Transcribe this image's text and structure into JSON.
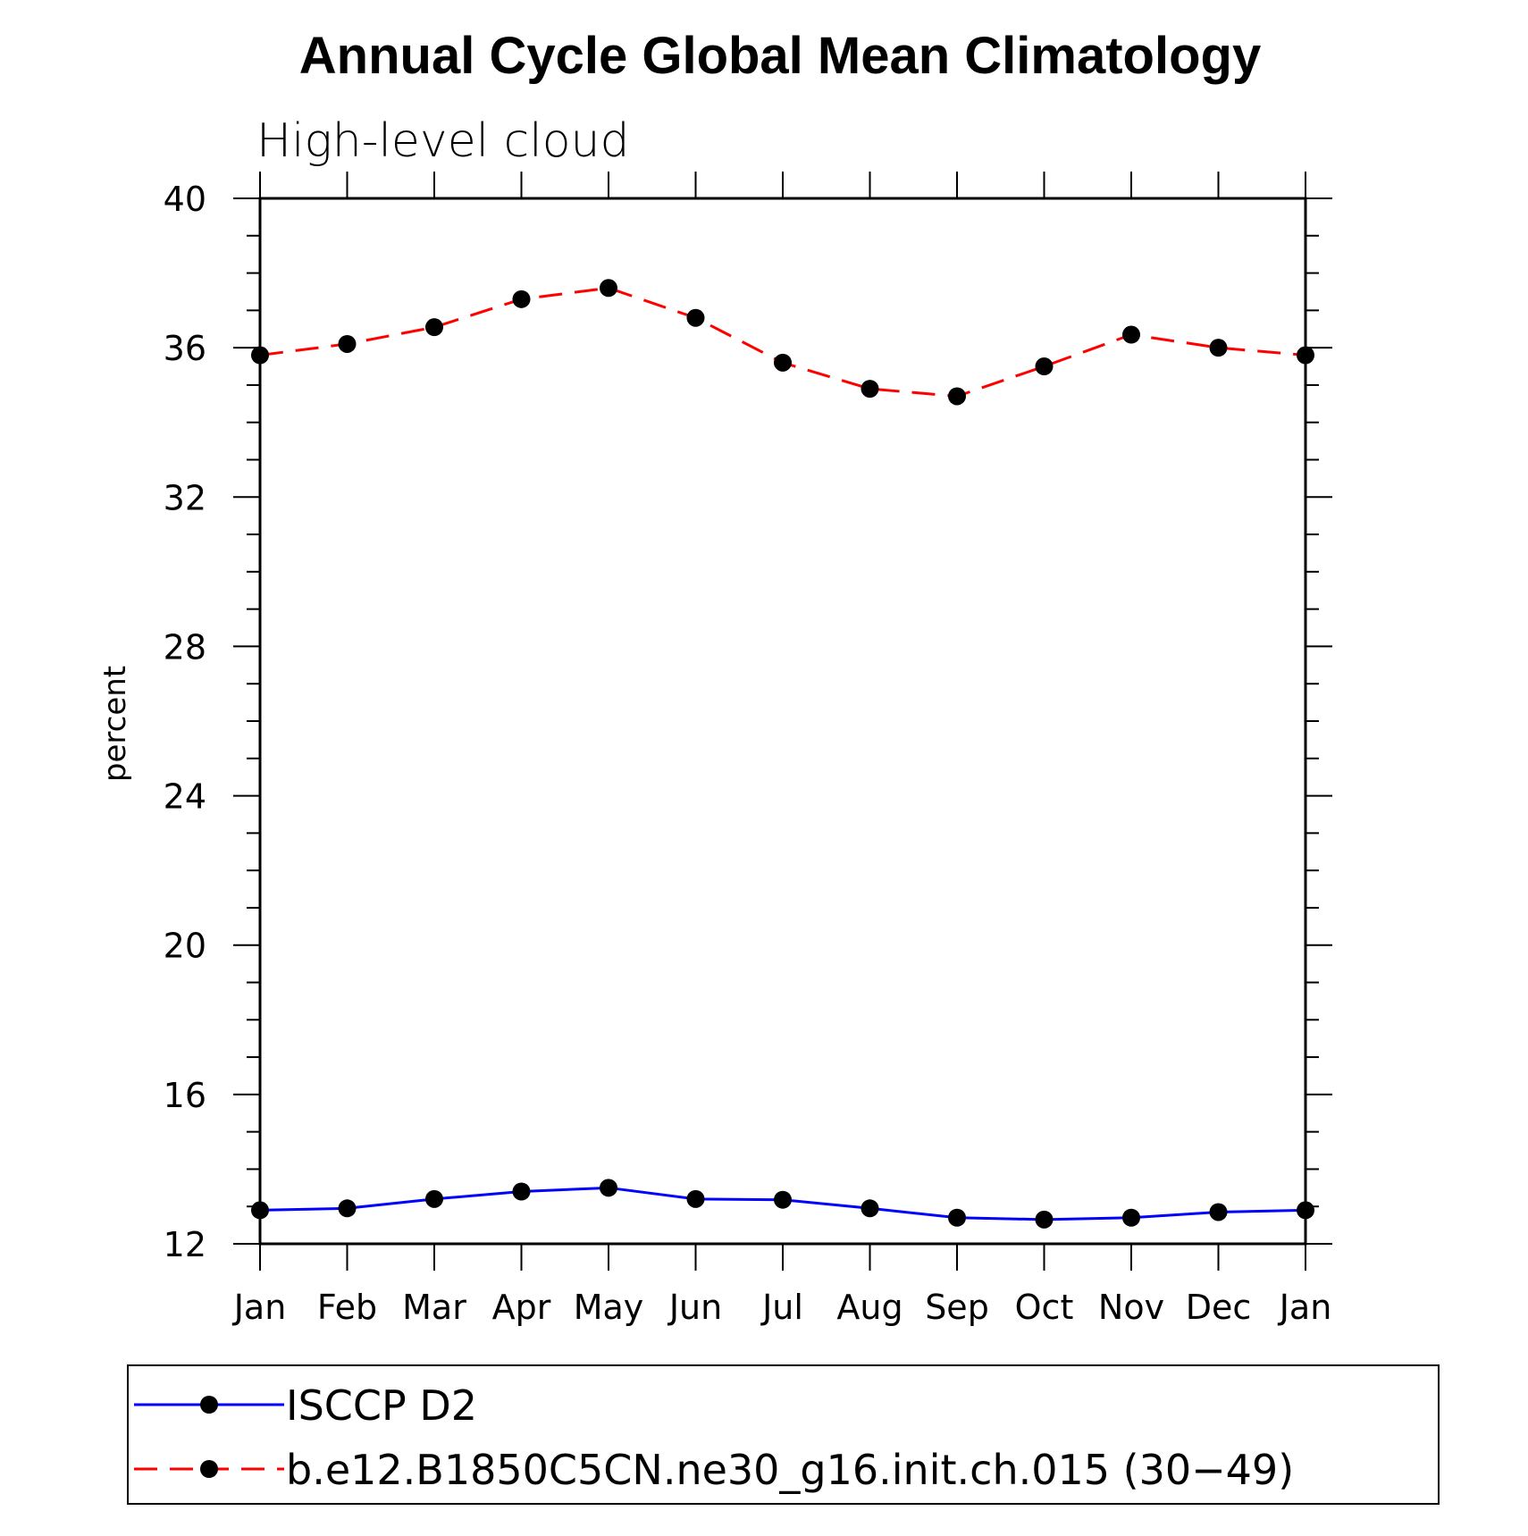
{
  "chart_data": {
    "type": "line",
    "title": "Annual Cycle Global Mean Climatology",
    "subtitle": "High-level cloud",
    "ylabel": "percent",
    "xlabel": "",
    "ylim": [
      12,
      40
    ],
    "yticks": [
      12,
      16,
      20,
      24,
      28,
      32,
      36,
      40
    ],
    "categories": [
      "Jan",
      "Feb",
      "Mar",
      "Apr",
      "May",
      "Jun",
      "Jul",
      "Aug",
      "Sep",
      "Oct",
      "Nov",
      "Dec",
      "Jan"
    ],
    "series": [
      {
        "name": "ISCCP D2",
        "color": "#0000ff",
        "dash": "solid",
        "marker": "dot",
        "values": [
          12.9,
          12.95,
          13.2,
          13.4,
          13.5,
          13.2,
          13.18,
          12.95,
          12.7,
          12.65,
          12.7,
          12.85,
          12.9
        ]
      },
      {
        "name": "b.e12.B1850C5CN.ne30_g16.init.ch.015 (30−49)",
        "color": "#ff0000",
        "dash": "dashed",
        "marker": "dot",
        "values": [
          35.8,
          36.1,
          36.55,
          37.3,
          37.6,
          36.8,
          35.6,
          34.9,
          34.7,
          35.5,
          36.35,
          36.0,
          35.8
        ]
      }
    ],
    "legend": "bottom",
    "grid": false
  }
}
